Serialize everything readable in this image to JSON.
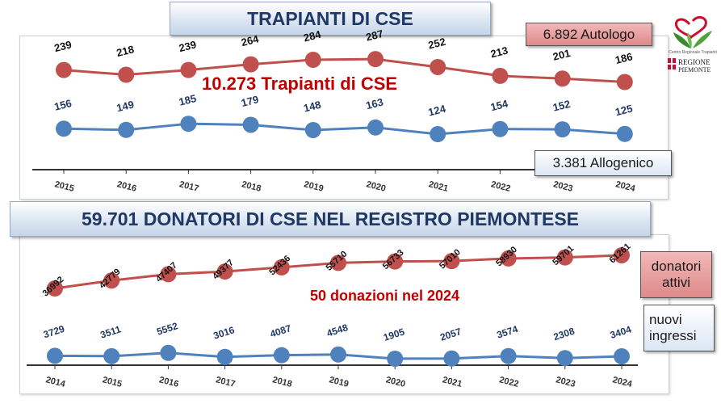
{
  "top": {
    "title": "TRAPIANTI DI CSE",
    "center_label": "10.273 Trapianti di CSE",
    "autologo_label": "6.892 Autologo",
    "allogenico_label": "3.381 Allogenico"
  },
  "bottom": {
    "title": "59.701 DONATORI DI CSE NEL REGISTRO PIEMONTESE",
    "center_label": "50 donazioni nel 2024",
    "donatori_label": "donatori attivi",
    "nuovi_label": "nuovi ingressi"
  },
  "logo": {
    "line1": "Centro Regionale Trapianti",
    "line2": "REGIONE",
    "line3": "PIEMONTE"
  },
  "colors": {
    "red": "#c0504d",
    "blue": "#4f81bd",
    "text_red": "#c00000",
    "text_blue": "#1f3864"
  },
  "chart_data": [
    {
      "type": "line",
      "categories": [
        "2015",
        "2016",
        "2017",
        "2018",
        "2019",
        "2020",
        "2021",
        "2022",
        "2023",
        "2024"
      ],
      "series": [
        {
          "name": "Autologo",
          "values": [
            239,
            218,
            239,
            264,
            284,
            287,
            252,
            213,
            201,
            186
          ]
        },
        {
          "name": "Allogenico",
          "values": [
            156,
            149,
            185,
            179,
            148,
            163,
            124,
            154,
            152,
            125
          ]
        }
      ]
    },
    {
      "type": "line",
      "categories": [
        "2014",
        "2015",
        "2016",
        "2017",
        "2018",
        "2019",
        "2020",
        "2021",
        "2022",
        "2023",
        "2024"
      ],
      "series": [
        {
          "name": "donatori attivi",
          "values": [
            36992,
            42779,
            47407,
            49377,
            52436,
            55710,
            56733,
            57010,
            58930,
            59701,
            61261
          ]
        },
        {
          "name": "nuovi ingressi",
          "values": [
            3729,
            3511,
            5552,
            3016,
            4087,
            4548,
            1905,
            2057,
            3574,
            2308,
            3404
          ]
        }
      ]
    }
  ]
}
